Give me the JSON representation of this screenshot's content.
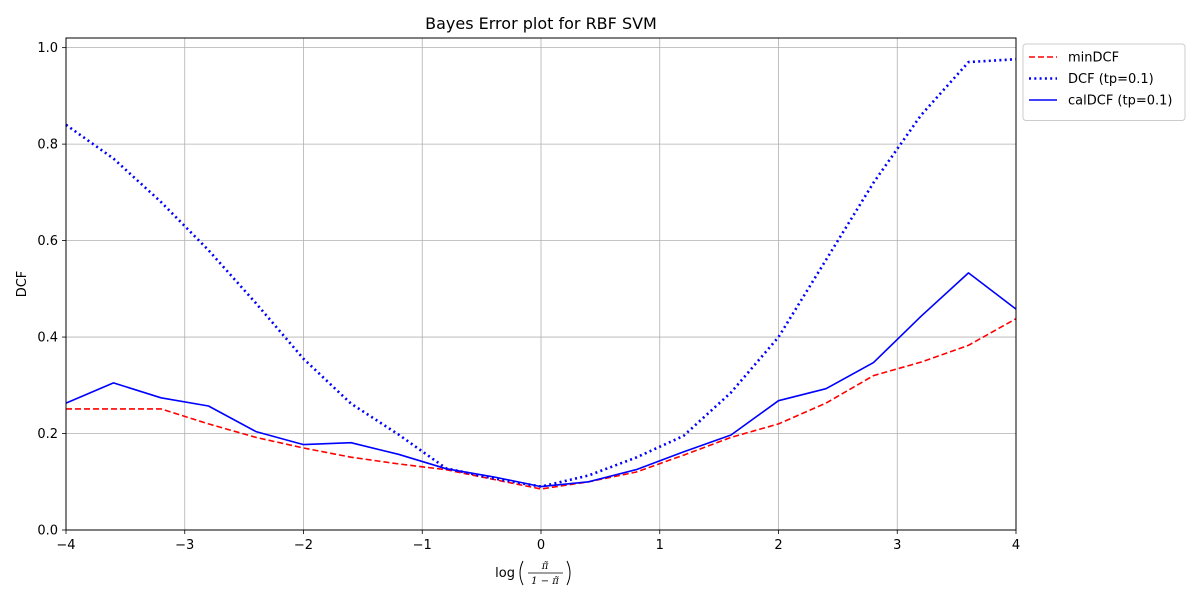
{
  "chart_data": {
    "type": "line",
    "title": "Bayes Error plot for RBF SVM",
    "xlabel": "log",
    "xlabel_numerator": "π̃",
    "xlabel_denominator": "1 − π̃",
    "ylabel": "DCF",
    "xlim": [
      -4,
      4
    ],
    "ylim": [
      0,
      1.02
    ],
    "xticks": [
      -4,
      -3,
      -2,
      -1,
      0,
      1,
      2,
      3,
      4
    ],
    "xtick_labels": [
      "−4",
      "−3",
      "−2",
      "−1",
      "0",
      "1",
      "2",
      "3",
      "4"
    ],
    "yticks": [
      0.0,
      0.2,
      0.4,
      0.6,
      0.8,
      1.0
    ],
    "ytick_labels": [
      "0.0",
      "0.2",
      "0.4",
      "0.6",
      "0.8",
      "1.0"
    ],
    "grid": true,
    "legend_position": "outside-upper-right",
    "x": [
      -4.0,
      -3.6,
      -3.2,
      -2.8,
      -2.4,
      -2.0,
      -1.6,
      -1.2,
      -0.8,
      -0.4,
      0.0,
      0.4,
      0.8,
      1.2,
      1.6,
      2.0,
      2.4,
      2.8,
      3.2,
      3.6,
      4.0
    ],
    "series": [
      {
        "name": "minDCF",
        "color": "#ff0000",
        "linestyle": "dashed",
        "values": [
          0.251,
          0.251,
          0.251,
          0.22,
          0.192,
          0.17,
          0.151,
          0.137,
          0.125,
          0.105,
          0.085,
          0.1,
          0.12,
          0.155,
          0.192,
          0.22,
          0.263,
          0.32,
          0.348,
          0.383,
          0.438
        ]
      },
      {
        "name": "DCF (tp=0.1)",
        "color": "#0000ff",
        "linestyle": "dotted",
        "values": [
          0.84,
          0.77,
          0.68,
          0.58,
          0.47,
          0.355,
          0.262,
          0.198,
          0.128,
          0.107,
          0.09,
          0.113,
          0.15,
          0.195,
          0.285,
          0.4,
          0.56,
          0.72,
          0.86,
          0.97,
          0.976
        ]
      },
      {
        "name": "calDCF (tp=0.1)",
        "color": "#0000ff",
        "linestyle": "solid",
        "values": [
          0.263,
          0.305,
          0.274,
          0.257,
          0.204,
          0.177,
          0.181,
          0.157,
          0.127,
          0.11,
          0.09,
          0.1,
          0.125,
          0.162,
          0.197,
          0.268,
          0.293,
          0.347,
          0.443,
          0.533,
          0.458
        ]
      }
    ]
  }
}
